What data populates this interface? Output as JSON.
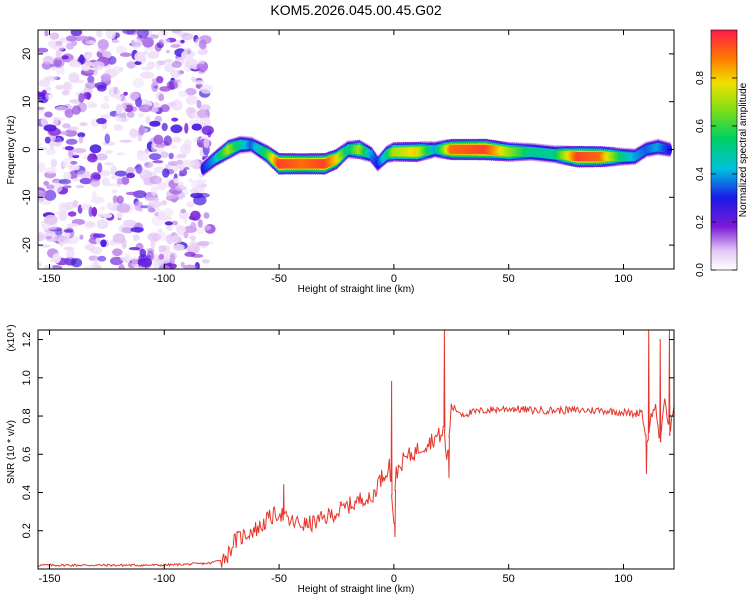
{
  "title": "KOM5.2026.045.00.45.G02",
  "chart_data": [
    {
      "type": "heatmap",
      "name": "spectrogram",
      "xlabel": "Height of straight line (km)",
      "ylabel": "Frequency (Hz)",
      "xlim": [
        -155,
        122
      ],
      "ylim": [
        -25,
        25
      ],
      "x_ticks": [
        -150,
        -100,
        -50,
        0,
        50,
        100
      ],
      "y_ticks": [
        -20,
        -10,
        0,
        10,
        20
      ],
      "noise_region": [
        -155,
        -80
      ],
      "ridge": {
        "x": [
          -83,
          -78,
          -72,
          -67,
          -62,
          -55,
          -50,
          -40,
          -30,
          -25,
          -20,
          -15,
          -10,
          -7,
          -3,
          0,
          10,
          18,
          25,
          40,
          50,
          60,
          70,
          80,
          90,
          100,
          105,
          110,
          115,
          120
        ],
        "y": [
          -4,
          -2,
          0,
          1,
          1,
          -1,
          -3,
          -3,
          -3,
          -2,
          0,
          0,
          -1,
          -3,
          -1,
          -0.5,
          -0.5,
          0,
          0,
          0,
          -0.5,
          -0.5,
          -1,
          -1.5,
          -1.5,
          -1.5,
          -1.5,
          0,
          0.5,
          0
        ],
        "amplitude": [
          0.3,
          0.4,
          0.7,
          0.5,
          0.35,
          0.6,
          0.95,
          0.9,
          0.95,
          0.8,
          0.5,
          0.7,
          0.4,
          0.3,
          0.5,
          0.7,
          0.8,
          0.4,
          0.9,
          0.95,
          0.7,
          0.5,
          0.5,
          0.95,
          0.9,
          0.5,
          0.4,
          0.35,
          0.4,
          0.3
        ]
      }
    },
    {
      "type": "colorbar",
      "label": "Normalized spectral amplitude",
      "range": [
        0,
        1
      ],
      "ticks": [
        0.0,
        0.2,
        0.4,
        0.6,
        0.8
      ],
      "tick_labels": [
        "0.0",
        "0.2",
        "0.4",
        "0.6",
        "0.8"
      ]
    },
    {
      "type": "line",
      "name": "snr",
      "xlabel": "Height of straight line (km)",
      "ylabel": "SNR (10 * v/v)",
      "y_multiplier": "(x10⁴)",
      "xlim": [
        -155,
        122
      ],
      "ylim": [
        0,
        1.25
      ],
      "x_ticks": [
        -150,
        -100,
        -50,
        0,
        50,
        100
      ],
      "y_ticks": [
        0.2,
        0.4,
        0.6,
        0.8,
        1.0,
        1.2
      ],
      "color": "#e5362b",
      "series": [
        {
          "name": "SNR",
          "x": [
            -155,
            -130,
            -100,
            -80,
            -75,
            -72,
            -70,
            -66,
            -62,
            -58,
            -55,
            -52,
            -50,
            -46,
            -42,
            -38,
            -33,
            -28,
            -24,
            -20,
            -16,
            -13,
            -10,
            -7,
            -4,
            -2,
            0,
            1,
            3,
            5,
            8,
            12,
            16,
            20,
            22,
            23,
            25,
            30,
            40,
            50,
            60,
            70,
            80,
            90,
            100,
            105,
            108,
            110,
            112,
            114,
            116,
            118,
            120,
            122
          ],
          "y": [
            0.02,
            0.02,
            0.02,
            0.03,
            0.05,
            0.08,
            0.14,
            0.17,
            0.2,
            0.22,
            0.26,
            0.28,
            0.3,
            0.25,
            0.24,
            0.23,
            0.25,
            0.28,
            0.3,
            0.33,
            0.35,
            0.38,
            0.35,
            0.45,
            0.5,
            0.55,
            0.26,
            0.5,
            0.55,
            0.58,
            0.6,
            0.64,
            0.67,
            0.7,
            0.72,
            0.55,
            0.85,
            0.81,
            0.83,
            0.84,
            0.83,
            0.83,
            0.83,
            0.83,
            0.82,
            0.81,
            0.83,
            0.65,
            0.8,
            0.85,
            0.65,
            0.9,
            0.7,
            0.85
          ],
          "spikes": [
            {
              "x": -48,
              "y": 0.44
            },
            {
              "x": -23,
              "y": 0.35
            },
            {
              "x": -1,
              "y": 0.98
            },
            {
              "x": 0.5,
              "y": 0.17
            },
            {
              "x": 22,
              "y": 1.25
            },
            {
              "x": 24,
              "y": 0.48
            },
            {
              "x": 110,
              "y": 0.5
            },
            {
              "x": 111,
              "y": 1.25
            },
            {
              "x": 116,
              "y": 1.2
            },
            {
              "x": 120,
              "y": 1.25
            }
          ]
        }
      ]
    }
  ]
}
